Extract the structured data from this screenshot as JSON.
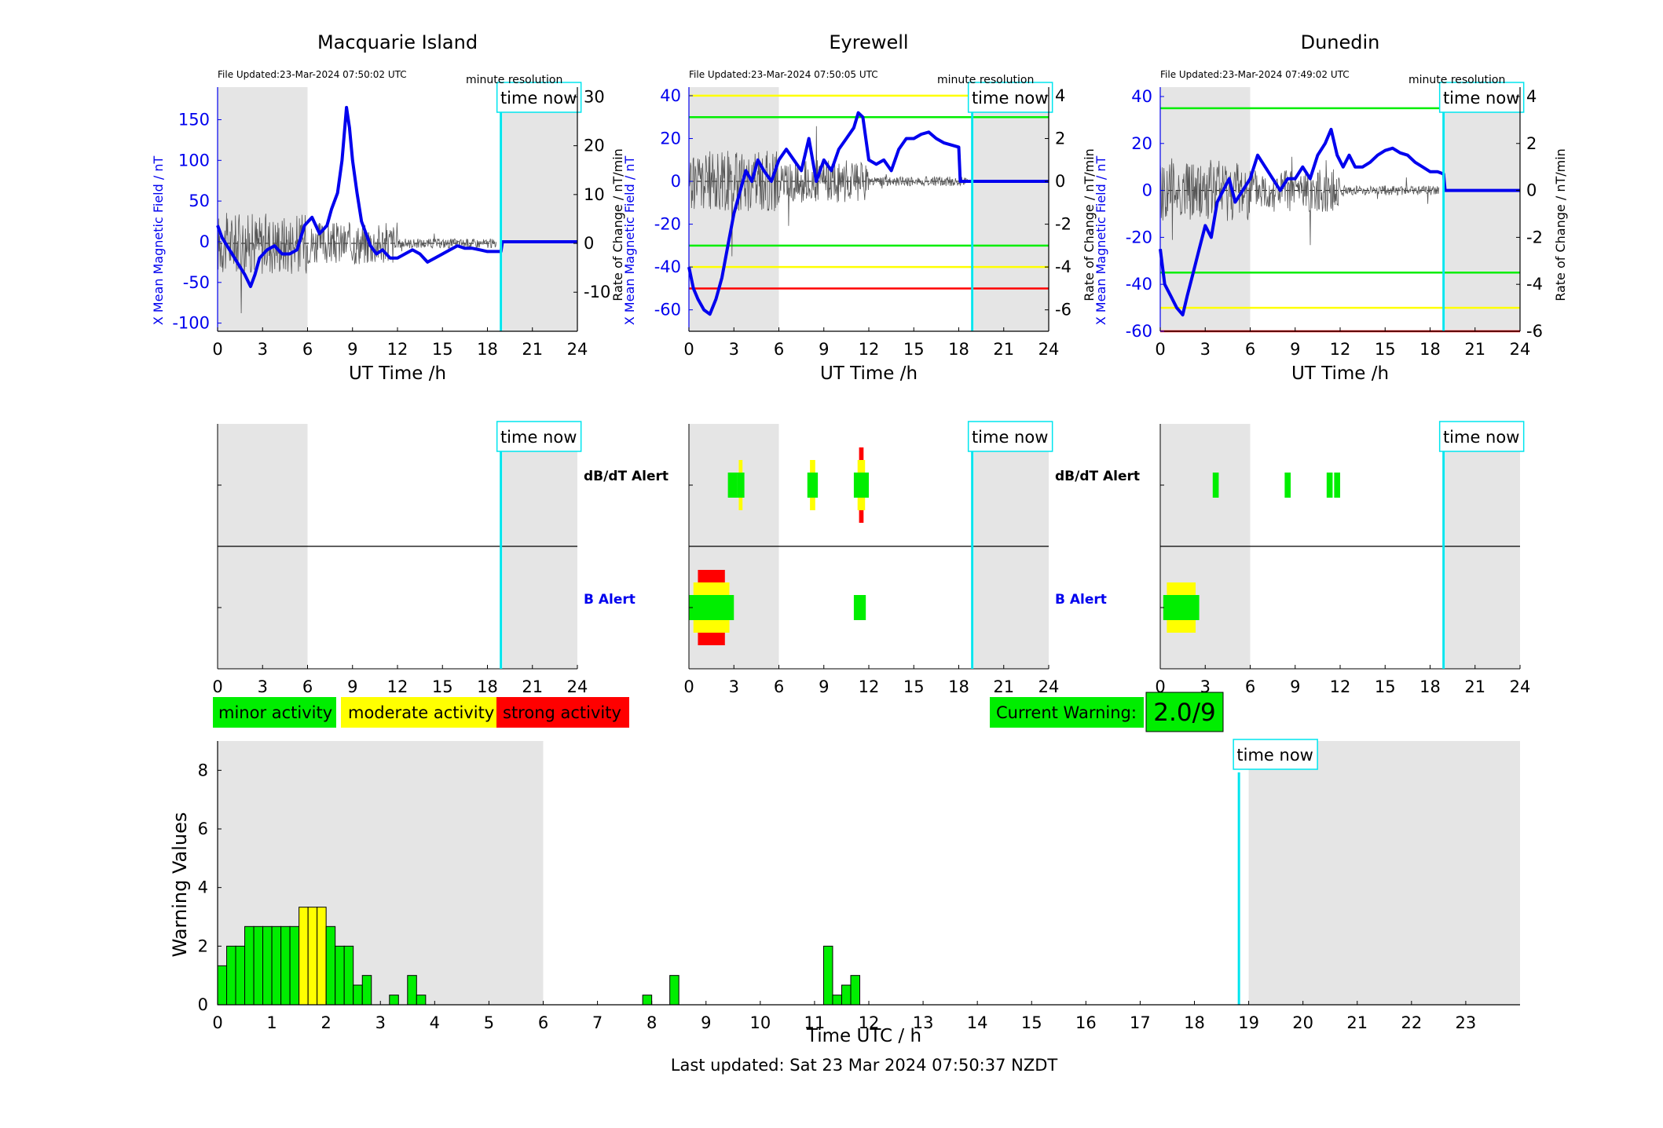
{
  "footer": {
    "time_label": "Time UTC / h",
    "last_updated": "Last updated: Sat 23 Mar 2024 07:50:37 NZDT"
  },
  "legend": {
    "minor": "minor activity",
    "moderate": "moderate activity",
    "strong": "strong activity"
  },
  "warning": {
    "label": "Current Warning:",
    "value": "2.0/9"
  },
  "common": {
    "time_now": "time now",
    "minute_resolution": "minute resolution",
    "dbdt_alert": "dB/dT Alert",
    "b_alert": "B Alert",
    "x_axis_label": "UT Time /h",
    "left_ylabel": "X Mean Magnetic Field / nT",
    "right_ylabel": "Rate of Change / nT/min"
  },
  "colors": {
    "minor": "#00ee00",
    "moderate": "#ffff00",
    "strong": "#ff0000",
    "now": "#00e5ee",
    "field": "#0000ee",
    "night": "#e5e5e5"
  },
  "chart_data": [
    {
      "type": "line",
      "title": "Macquarie Island",
      "file_updated": "File Updated:23-Mar-2024 07:50:02 UTC",
      "xlabel": "UT Time /h",
      "ylabel": "X Mean Magnetic Field / nT",
      "ylabel_right": "Rate of Change / nT/min",
      "xlim": [
        0,
        24
      ],
      "xticks": [
        0,
        3,
        6,
        9,
        12,
        15,
        18,
        21,
        24
      ],
      "ylim": [
        -110,
        190
      ],
      "yticks": [
        -100,
        -50,
        0,
        50,
        100,
        150
      ],
      "ylim_right": [
        -18,
        32
      ],
      "yticks_right": [
        -10,
        0,
        10,
        20,
        30
      ],
      "night_shading": [
        [
          0,
          6
        ],
        [
          19,
          24
        ]
      ],
      "time_now": 18.9,
      "threshold_lines": [],
      "series": [
        {
          "name": "X Mean Magnetic Field / nT",
          "x": [
            0,
            0.3,
            0.8,
            1.3,
            1.8,
            2.2,
            2.5,
            2.8,
            3.3,
            3.8,
            4.3,
            4.8,
            5.3,
            5.8,
            6.3,
            6.8,
            7.3,
            7.6,
            8.0,
            8.3,
            8.6,
            8.8,
            9.0,
            9.3,
            9.6,
            9.9,
            10.2,
            10.6,
            11.0,
            11.5,
            12.0,
            12.5,
            13.0,
            13.5,
            14.0,
            14.5,
            15.0,
            15.5,
            16.0,
            16.5,
            17.0,
            17.5,
            18.0,
            18.5,
            18.9,
            19.0,
            24
          ],
          "y": [
            20,
            5,
            -10,
            -25,
            -40,
            -55,
            -40,
            -20,
            -10,
            -5,
            -15,
            -15,
            -10,
            20,
            30,
            10,
            20,
            40,
            60,
            100,
            165,
            140,
            100,
            60,
            25,
            10,
            -5,
            -15,
            -10,
            -20,
            -20,
            -15,
            -10,
            -15,
            -25,
            -20,
            -15,
            -10,
            -5,
            -8,
            -8,
            -10,
            -12,
            -12,
            -12,
            0,
            0
          ]
        }
      ]
    },
    {
      "type": "line",
      "title": "Eyrewell",
      "file_updated": "File Updated:23-Mar-2024 07:50:05 UTC",
      "xlabel": "UT Time /h",
      "ylabel": "X Mean Magnetic Field / nT",
      "ylabel_right": "Rate of Change / nT/min",
      "xlim": [
        0,
        24
      ],
      "xticks": [
        0,
        3,
        6,
        9,
        12,
        15,
        18,
        21,
        24
      ],
      "ylim": [
        -70,
        44
      ],
      "yticks": [
        -60,
        -40,
        -20,
        0,
        20,
        40
      ],
      "ylim_right": [
        -7,
        4.4
      ],
      "yticks_right": [
        -6,
        -4,
        -2,
        0,
        2,
        4
      ],
      "night_shading": [
        [
          0,
          6
        ],
        [
          19,
          24
        ]
      ],
      "time_now": 18.9,
      "threshold_lines": [
        {
          "value": 40,
          "color": "#ffff00"
        },
        {
          "value": 30,
          "color": "#00ee00"
        },
        {
          "value": -30,
          "color": "#00ee00"
        },
        {
          "value": -40,
          "color": "#ffff00"
        },
        {
          "value": -50,
          "color": "#ff0000"
        }
      ],
      "series": [
        {
          "name": "X Mean Magnetic Field / nT",
          "x": [
            0,
            0.3,
            0.6,
            1.0,
            1.4,
            1.8,
            2.2,
            2.6,
            3.0,
            3.4,
            3.8,
            4.2,
            4.6,
            5.0,
            5.5,
            6.0,
            6.5,
            7.0,
            7.5,
            8.0,
            8.5,
            9.0,
            9.5,
            10.0,
            10.5,
            11.0,
            11.3,
            11.6,
            12.0,
            12.5,
            13.0,
            13.5,
            14.0,
            14.5,
            15.0,
            15.5,
            16.0,
            16.5,
            17.0,
            17.5,
            18.0,
            18.1,
            24
          ],
          "y": [
            -40,
            -50,
            -55,
            -60,
            -62,
            -55,
            -45,
            -30,
            -15,
            -5,
            5,
            0,
            10,
            5,
            0,
            10,
            15,
            10,
            5,
            20,
            0,
            10,
            5,
            15,
            20,
            25,
            32,
            30,
            10,
            8,
            10,
            5,
            15,
            20,
            20,
            22,
            23,
            20,
            18,
            17,
            16,
            0,
            0
          ]
        }
      ]
    },
    {
      "type": "line",
      "title": "Dunedin",
      "file_updated": "File Updated:23-Mar-2024 07:49:02 UTC",
      "xlabel": "UT Time /h",
      "ylabel": "X Mean Magnetic Field / nT",
      "ylabel_right": "Rate of Change / nT/min",
      "xlim": [
        0,
        24
      ],
      "xticks": [
        0,
        3,
        6,
        9,
        12,
        15,
        18,
        21,
        24
      ],
      "ylim": [
        -60,
        44
      ],
      "yticks": [
        -60,
        -40,
        -20,
        0,
        20,
        40
      ],
      "ylim_right": [
        -6,
        4.4
      ],
      "yticks_right": [
        -6,
        -4,
        -2,
        0,
        2,
        4
      ],
      "night_shading": [
        [
          0,
          6
        ],
        [
          19,
          24
        ]
      ],
      "time_now": 18.9,
      "threshold_lines": [
        {
          "value": 35,
          "color": "#00ee00"
        },
        {
          "value": -35,
          "color": "#00ee00"
        },
        {
          "value": -50,
          "color": "#ffff00"
        },
        {
          "value": -60,
          "color": "#ff0000"
        }
      ],
      "series": [
        {
          "name": "X Mean Magnetic Field / nT",
          "x": [
            0,
            0.3,
            0.7,
            1.1,
            1.5,
            1.8,
            2.2,
            2.6,
            3.0,
            3.4,
            3.8,
            4.2,
            4.6,
            5.0,
            5.5,
            6.0,
            6.5,
            7.0,
            7.5,
            8.0,
            8.5,
            9.0,
            9.5,
            10.0,
            10.5,
            11.0,
            11.4,
            11.8,
            12.2,
            12.6,
            13.0,
            13.5,
            14.0,
            14.5,
            15.0,
            15.5,
            16.0,
            16.5,
            17.0,
            17.5,
            18.0,
            18.5,
            18.9,
            19.0,
            24
          ],
          "y": [
            -25,
            -40,
            -45,
            -50,
            -53,
            -45,
            -35,
            -25,
            -15,
            -20,
            -5,
            0,
            5,
            -5,
            0,
            5,
            15,
            10,
            5,
            0,
            5,
            5,
            10,
            5,
            15,
            20,
            26,
            15,
            10,
            15,
            10,
            10,
            12,
            15,
            17,
            18,
            16,
            15,
            12,
            10,
            8,
            8,
            7,
            0,
            0
          ]
        }
      ]
    },
    {
      "type": "bar",
      "title": "",
      "xlabel": "Time UTC / h",
      "ylabel": "Warning Values",
      "xlim": [
        0,
        24
      ],
      "xticks": [
        0,
        1,
        2,
        3,
        4,
        5,
        6,
        7,
        8,
        9,
        10,
        11,
        12,
        13,
        14,
        15,
        16,
        17,
        18,
        19,
        20,
        21,
        22,
        23
      ],
      "ylim": [
        0,
        9
      ],
      "yticks": [
        0,
        2,
        4,
        6,
        8
      ],
      "night_shading": [
        [
          0,
          6
        ],
        [
          19,
          24
        ]
      ],
      "time_now": 18.82,
      "bin_width_h": 0.1667,
      "bars": [
        {
          "x": 0.0,
          "value": 1.33,
          "level": "minor"
        },
        {
          "x": 0.167,
          "value": 2.0,
          "level": "minor"
        },
        {
          "x": 0.333,
          "value": 2.0,
          "level": "minor"
        },
        {
          "x": 0.5,
          "value": 2.67,
          "level": "minor"
        },
        {
          "x": 0.667,
          "value": 2.67,
          "level": "minor"
        },
        {
          "x": 0.833,
          "value": 2.67,
          "level": "minor"
        },
        {
          "x": 1.0,
          "value": 2.67,
          "level": "minor"
        },
        {
          "x": 1.167,
          "value": 2.67,
          "level": "minor"
        },
        {
          "x": 1.333,
          "value": 2.67,
          "level": "minor"
        },
        {
          "x": 1.5,
          "value": 3.33,
          "level": "moderate"
        },
        {
          "x": 1.667,
          "value": 3.33,
          "level": "moderate"
        },
        {
          "x": 1.833,
          "value": 3.33,
          "level": "moderate"
        },
        {
          "x": 2.0,
          "value": 2.67,
          "level": "minor"
        },
        {
          "x": 2.167,
          "value": 2.0,
          "level": "minor"
        },
        {
          "x": 2.333,
          "value": 2.0,
          "level": "minor"
        },
        {
          "x": 2.5,
          "value": 0.67,
          "level": "minor"
        },
        {
          "x": 2.667,
          "value": 1.0,
          "level": "minor"
        },
        {
          "x": 3.167,
          "value": 0.33,
          "level": "minor"
        },
        {
          "x": 3.5,
          "value": 1.0,
          "level": "minor"
        },
        {
          "x": 3.667,
          "value": 0.33,
          "level": "minor"
        },
        {
          "x": 7.833,
          "value": 0.33,
          "level": "minor"
        },
        {
          "x": 8.333,
          "value": 1.0,
          "level": "minor"
        },
        {
          "x": 11.167,
          "value": 2.0,
          "level": "minor"
        },
        {
          "x": 11.333,
          "value": 0.33,
          "level": "minor"
        },
        {
          "x": 11.5,
          "value": 0.67,
          "level": "minor"
        },
        {
          "x": 11.667,
          "value": 1.0,
          "level": "minor"
        }
      ]
    }
  ],
  "alert_strips": [
    {
      "station": "Macquarie Island",
      "dbdt": [],
      "b": []
    },
    {
      "station": "Eyrewell",
      "dbdt": [
        {
          "from": 2.6,
          "to": 3.2,
          "level": "minor"
        },
        {
          "from": 3.2,
          "to": 3.7,
          "level": "moderate"
        },
        {
          "from": 7.9,
          "to": 8.6,
          "level": "moderate"
        },
        {
          "from": 11.0,
          "to": 12.0,
          "level": "strong"
        }
      ],
      "b": [
        {
          "from": 0.0,
          "to": 3.0,
          "level": "strong"
        },
        {
          "from": 11.0,
          "to": 11.8,
          "level": "minor"
        }
      ]
    },
    {
      "station": "Dunedin",
      "dbdt": [
        {
          "from": 3.5,
          "to": 3.9,
          "level": "minor"
        },
        {
          "from": 8.3,
          "to": 8.7,
          "level": "minor"
        },
        {
          "from": 11.1,
          "to": 11.5,
          "level": "minor"
        },
        {
          "from": 11.6,
          "to": 12.0,
          "level": "minor"
        }
      ],
      "b": [
        {
          "from": 0.2,
          "to": 2.6,
          "level": "moderate"
        }
      ]
    }
  ]
}
